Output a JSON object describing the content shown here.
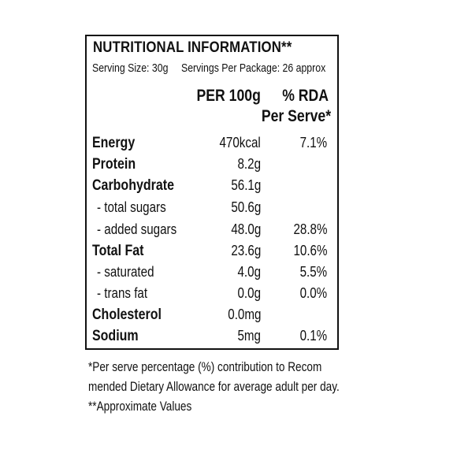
{
  "label": {
    "title": "NUTRITIONAL INFORMATION**",
    "serving_size": "Serving Size: 30g",
    "servings_per_package": "Servings Per Package: 26 approx",
    "col_per100": "PER 100g",
    "col_rda_line1": "% RDA",
    "col_rda_line2": "Per Serve*",
    "rows": [
      {
        "name": "Energy",
        "per100": "470kcal",
        "rda": "7.1%"
      },
      {
        "name": "Protein",
        "per100": "8.2g",
        "rda": ""
      },
      {
        "name": "Carbohydrate",
        "per100": "56.1g",
        "rda": ""
      },
      {
        "name": "- total sugars",
        "per100": "50.6g",
        "rda": ""
      },
      {
        "name": "- added sugars",
        "per100": "48.0g",
        "rda": "28.8%"
      },
      {
        "name": "Total Fat",
        "per100": "23.6g",
        "rda": "10.6%"
      },
      {
        "name": "- saturated",
        "per100": "4.0g",
        "rda": "5.5%"
      },
      {
        "name": "- trans fat",
        "per100": "0.0g",
        "rda": "0.0%"
      },
      {
        "name": "Cholesterol",
        "per100": "0.0mg",
        "rda": ""
      },
      {
        "name": "Sodium",
        "per100": "5mg",
        "rda": "0.1%"
      }
    ]
  },
  "footnotes": {
    "line1": "*Per serve percentage (%) contribution to Recom",
    "line2": "mended Dietary Allowance for average adult per day.",
    "line3": "**Approximate Values"
  }
}
